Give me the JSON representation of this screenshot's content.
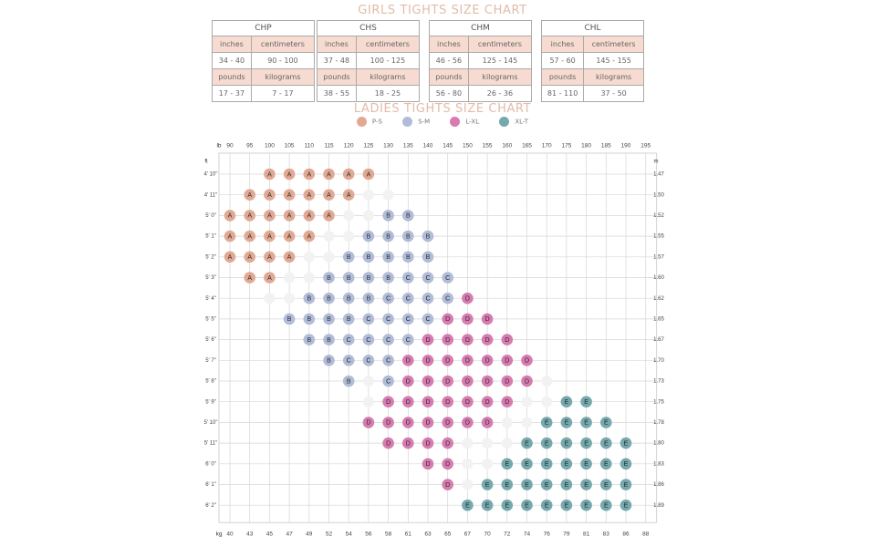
{
  "girls_title": "GIRLS TIGHTS SIZE CHART",
  "ladies_title": "LADIES TIGHTS SIZE CHART",
  "girls_tables": [
    {
      "name": "CHP",
      "h1": "inches",
      "h2": "centimeters",
      "v1": "34 - 40",
      "v2": "90 - 100",
      "h3": "pounds",
      "h4": "kilograms",
      "v3": "17 - 37",
      "v4": "7 - 17"
    },
    {
      "name": "CHS",
      "h1": "inches",
      "h2": "centimeters",
      "v1": "37 - 48",
      "v2": "100 - 125",
      "h3": "pounds",
      "h4": "kilograms",
      "v3": "38 - 55",
      "v4": "18 - 25"
    },
    {
      "name": "CHM",
      "h1": "inches",
      "h2": "centimeters",
      "v1": "46 - 56",
      "v2": "125 - 145",
      "h3": "pounds",
      "h4": "kilograms",
      "v3": "56 - 80",
      "v4": "26 - 36"
    },
    {
      "name": "CHL",
      "h1": "inches",
      "h2": "centimeters",
      "v1": "57 - 60",
      "v2": "145 - 155",
      "h3": "pounds",
      "h4": "kilograms",
      "v3": "81 - 110",
      "v4": "37 - 50"
    }
  ],
  "legend": [
    {
      "label": "P-S",
      "color": "#e1a994"
    },
    {
      "label": "S-M",
      "color": "#b0bcd8"
    },
    {
      "label": "L-XL",
      "color": "#d77bb0"
    },
    {
      "label": "XL-T",
      "color": "#76a9ad"
    }
  ],
  "chart_data": {
    "type": "table",
    "title": "LADIES TIGHTS SIZE CHART",
    "x_top_label": "lb",
    "x_bottom_label": "kg",
    "y_left_label": "ft",
    "y_right_label": "m",
    "x_lb": [
      "90",
      "95",
      "100",
      "105",
      "110",
      "115",
      "120",
      "125",
      "130",
      "135",
      "140",
      "145",
      "150",
      "155",
      "160",
      "165",
      "170",
      "175",
      "180",
      "185",
      "190",
      "195"
    ],
    "x_kg": [
      "40",
      "43",
      "45",
      "47",
      "49",
      "52",
      "54",
      "56",
      "58",
      "61",
      "63",
      "65",
      "67",
      "70",
      "72",
      "74",
      "76",
      "79",
      "81",
      "83",
      "86",
      "88"
    ],
    "y_ft": [
      "4' 10\"",
      "4' 11\"",
      "5' 0\"",
      "5' 1\"",
      "5' 2\"",
      "5' 3\"",
      "5' 4\"",
      "5' 5\"",
      "5' 6\"",
      "5' 7\"",
      "5' 8\"",
      "5' 9\"",
      "5' 10\"",
      "5' 11\"",
      "6' 0\"",
      "6' 1\"",
      "6' 2\""
    ],
    "y_m": [
      "1.47",
      "1.50",
      "1.52",
      "1.55",
      "1.57",
      "1.60",
      "1.62",
      "1.65",
      "1.67",
      "1.70",
      "1.73",
      "1.75",
      "1.78",
      "1.80",
      "1.83",
      "1.86",
      "1.89"
    ],
    "size_colors": {
      "A": "#e1a994",
      "B": "#b0bcd8",
      "C": "#b0bcd8",
      "D": "#d77bb0",
      "E": "#76a9ad",
      "w": "#f2f2f2"
    },
    "grid": [
      "..AAAAAA..............",
      ".AAAAAAww.............",
      "AAAAAAwwBB............",
      "AAAAAwwBBBB...........",
      "AAAAwwBBBBB...........",
      ".AAwwBBBBCCC..........",
      "..wwBBBBCCCCD.........",
      "...BBBBCCCCDDD........",
      "....BBCCCCDDDDD.......",
      ".....BCCCDDDDDDD......",
      "......BwCDDDDDDDw.....",
      ".......wDDDDDDDwwEE...",
      ".......DDDDDDDwwEEEE..",
      "........DDDDwwwEEEEEE.",
      "..........DDwwEEEEEEE.",
      "...........DwEEEEEEEE.",
      "............EEEEEEEEE."
    ]
  }
}
